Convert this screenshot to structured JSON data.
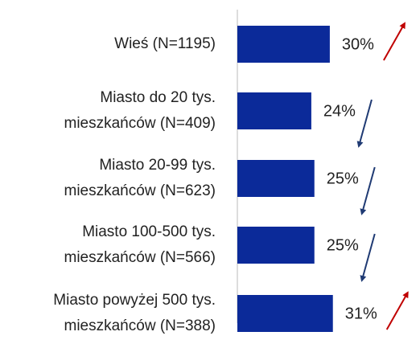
{
  "chart_data": {
    "type": "bar",
    "categories": [
      "Wieś (N=1195)",
      "Miasto do 20 tys.\nmieszkańców (N=409)",
      "Miasto 20-99 tys.\nmieszkańców (N=623)",
      "Miasto 100-500 tys.\nmieszkańców (N=566)",
      "Miasto powyżej 500 tys.\nmieszkańców (N=388)"
    ],
    "values": [
      30,
      24,
      25,
      25,
      31
    ],
    "value_labels": [
      "30%",
      "24%",
      "25%",
      "25%",
      "31%"
    ],
    "color": "#0b2a99",
    "trend": [
      "up",
      "down",
      "down",
      "down",
      "up"
    ],
    "trend_colors": {
      "up": "#c00000",
      "down": "#1f3a73"
    }
  }
}
